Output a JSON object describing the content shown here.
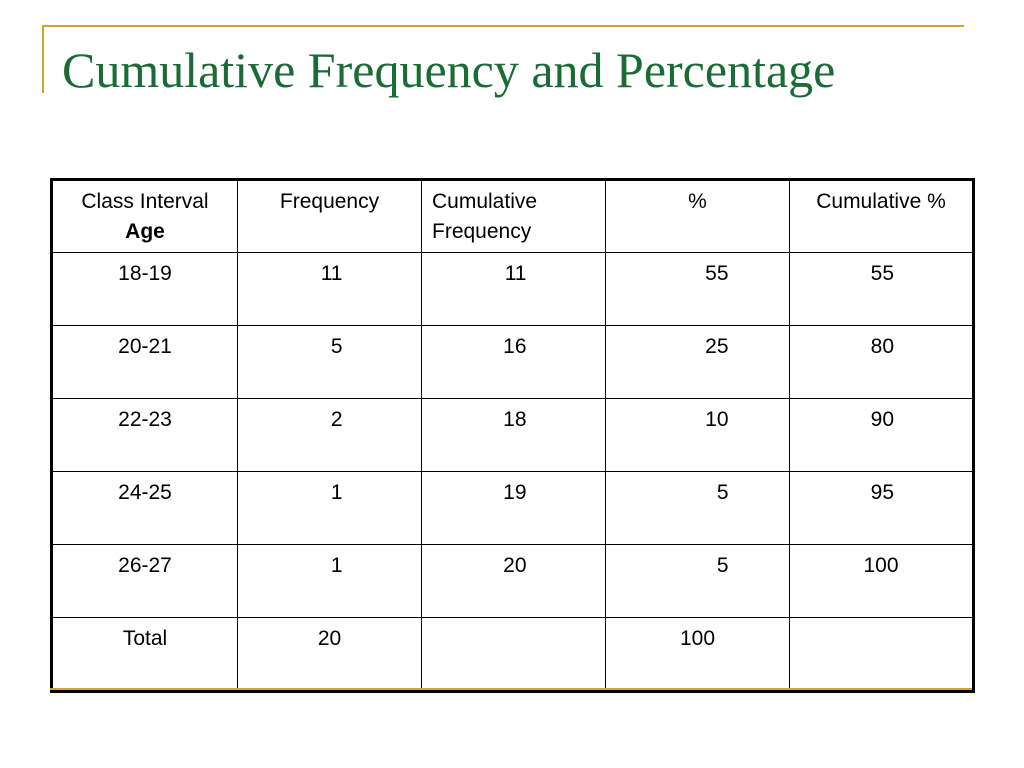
{
  "slide": {
    "title": "Cumulative Frequency and Percentage"
  },
  "table": {
    "headers": [
      {
        "line1": "Class Interval",
        "line2": "Age"
      },
      {
        "line1": "Frequency",
        "line2": ""
      },
      {
        "line1": "Cumulative",
        "line2": "Frequency"
      },
      {
        "line1": "%",
        "line2": ""
      },
      {
        "line1": "Cumulative %",
        "line2": ""
      }
    ],
    "rows": [
      [
        "18-19",
        "11",
        "11",
        "55",
        "55"
      ],
      [
        "20-21",
        "5",
        "16",
        "25",
        "80"
      ],
      [
        "22-23",
        "2",
        "18",
        "10",
        "90"
      ],
      [
        "24-25",
        "1",
        "19",
        "5",
        "95"
      ],
      [
        "26-27",
        "1",
        "20",
        "5",
        "100"
      ],
      [
        "Total",
        "20",
        "",
        "100",
        ""
      ]
    ]
  },
  "colors": {
    "title": "#1a6b35",
    "accent": "#c8a827"
  }
}
